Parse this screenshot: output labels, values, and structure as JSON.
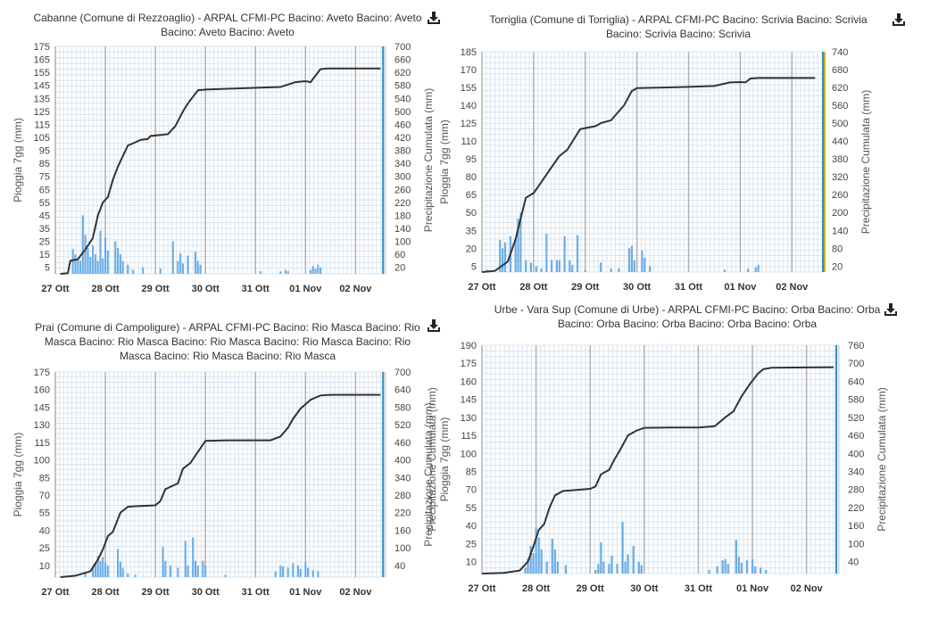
{
  "download_icon": "download-icon",
  "colors": {
    "bar": "#6aaee8",
    "line": "#333333",
    "grid_minor": "#d9e4ef",
    "grid_major": "#b0b0b0",
    "now_line": "#2b8fc7",
    "now_line_alt": "#c8b400"
  },
  "chart_data": [
    {
      "type": "bar+line",
      "title": "Cabanne (Comune di Rezzoaglio) - ARPAL CFMI-PC Bacino: Aveto Bacino: Aveto Bacino: Aveto Bacino: Aveto",
      "ylabel": "Pioggia 7gg (mm)",
      "y2label": "Precipitazione Cumulata (mm)",
      "categories": [
        "27 Ott",
        "28 Ott",
        "29 Ott",
        "30 Ott",
        "31 Ott",
        "01 Nov",
        "02 Nov"
      ],
      "yticks": [
        5,
        15,
        25,
        35,
        45,
        55,
        65,
        75,
        85,
        95,
        105,
        115,
        125,
        135,
        145,
        155,
        165,
        175
      ],
      "y2ticks": [
        20,
        60,
        100,
        140,
        180,
        220,
        260,
        300,
        340,
        380,
        420,
        460,
        500,
        540,
        580,
        620,
        660,
        700
      ],
      "ylim": [
        0,
        175
      ],
      "y2lim": [
        0,
        700
      ],
      "grid": true,
      "bars": [
        [
          27.35,
          19
        ],
        [
          27.4,
          15
        ],
        [
          27.45,
          12
        ],
        [
          27.5,
          10
        ],
        [
          27.55,
          45
        ],
        [
          27.6,
          30
        ],
        [
          27.65,
          20
        ],
        [
          27.7,
          13
        ],
        [
          27.75,
          22
        ],
        [
          27.8,
          15
        ],
        [
          27.85,
          10
        ],
        [
          27.9,
          33
        ],
        [
          27.95,
          12
        ],
        [
          28.0,
          28
        ],
        [
          28.05,
          18
        ],
        [
          28.2,
          25
        ],
        [
          28.25,
          20
        ],
        [
          28.3,
          15
        ],
        [
          28.35,
          10
        ],
        [
          28.45,
          7
        ],
        [
          28.55,
          3
        ],
        [
          28.75,
          5
        ],
        [
          29.1,
          4
        ],
        [
          29.35,
          25
        ],
        [
          29.45,
          10
        ],
        [
          29.5,
          16
        ],
        [
          29.55,
          8
        ],
        [
          29.65,
          14
        ],
        [
          29.8,
          17
        ],
        [
          29.85,
          10
        ],
        [
          29.9,
          7
        ],
        [
          31.1,
          2
        ],
        [
          31.5,
          2
        ],
        [
          31.6,
          3
        ],
        [
          31.65,
          2
        ],
        [
          32.1,
          3
        ],
        [
          32.15,
          6
        ],
        [
          32.2,
          4
        ],
        [
          32.25,
          7
        ],
        [
          32.3,
          5
        ]
      ],
      "cumulative": [
        [
          27.1,
          0
        ],
        [
          27.25,
          2
        ],
        [
          27.3,
          40
        ],
        [
          27.45,
          45
        ],
        [
          27.6,
          75
        ],
        [
          27.75,
          110
        ],
        [
          27.85,
          180
        ],
        [
          27.95,
          220
        ],
        [
          28.05,
          236
        ],
        [
          28.15,
          290
        ],
        [
          28.25,
          330
        ],
        [
          28.45,
          395
        ],
        [
          28.6,
          405
        ],
        [
          28.7,
          412
        ],
        [
          28.85,
          415
        ],
        [
          28.9,
          424
        ],
        [
          29.25,
          430
        ],
        [
          29.4,
          455
        ],
        [
          29.55,
          500
        ],
        [
          29.65,
          525
        ],
        [
          29.85,
          565
        ],
        [
          30.0,
          567
        ],
        [
          30.5,
          570
        ],
        [
          31.1,
          573
        ],
        [
          31.5,
          575
        ],
        [
          31.8,
          590
        ],
        [
          32.0,
          593
        ],
        [
          32.1,
          590
        ],
        [
          32.3,
          630
        ],
        [
          32.45,
          632
        ],
        [
          33.5,
          632
        ]
      ],
      "now_x": 33.55
    },
    {
      "type": "bar+line",
      "title": "Torriglia (Comune di Torriglia) - ARPAL CFMI-PC Bacino: Scrivia Bacino: Scrivia Bacino: Scrivia Bacino: Scrivia",
      "ylabel": "Pioggia 7gg (mm)",
      "y2label": "Precipitazione Cumulata (mm)",
      "categories": [
        "27 Ott",
        "28 Ott",
        "29 Ott",
        "30 Ott",
        "31 Ott",
        "01 Nov",
        "02 Nov"
      ],
      "yticks": [
        5,
        20,
        35,
        50,
        65,
        80,
        95,
        110,
        125,
        140,
        155,
        170,
        185
      ],
      "y2ticks": [
        20,
        80,
        140,
        200,
        260,
        320,
        380,
        440,
        500,
        560,
        620,
        680,
        740
      ],
      "ylim": [
        0,
        185
      ],
      "y2lim": [
        0,
        740
      ],
      "grid": true,
      "bars": [
        [
          27.1,
          2
        ],
        [
          27.35,
          27
        ],
        [
          27.4,
          20
        ],
        [
          27.45,
          25
        ],
        [
          27.55,
          30
        ],
        [
          27.65,
          28
        ],
        [
          27.7,
          45
        ],
        [
          27.75,
          50
        ],
        [
          27.85,
          10
        ],
        [
          27.95,
          8
        ],
        [
          28.05,
          5
        ],
        [
          28.15,
          3
        ],
        [
          28.25,
          32
        ],
        [
          28.35,
          10
        ],
        [
          28.45,
          10
        ],
        [
          28.5,
          10
        ],
        [
          28.6,
          30
        ],
        [
          28.7,
          10
        ],
        [
          28.75,
          6
        ],
        [
          28.85,
          31
        ],
        [
          29.0,
          2
        ],
        [
          29.3,
          8
        ],
        [
          29.5,
          3
        ],
        [
          29.65,
          3
        ],
        [
          29.85,
          20
        ],
        [
          29.9,
          22
        ],
        [
          29.95,
          10
        ],
        [
          30.1,
          18
        ],
        [
          30.15,
          12
        ],
        [
          30.25,
          5
        ],
        [
          31.7,
          2
        ],
        [
          32.15,
          3
        ],
        [
          32.3,
          4
        ],
        [
          32.35,
          6
        ]
      ],
      "cumulative": [
        [
          27.0,
          0
        ],
        [
          27.25,
          4
        ],
        [
          27.5,
          35
        ],
        [
          27.65,
          110
        ],
        [
          27.75,
          180
        ],
        [
          27.85,
          250
        ],
        [
          28.0,
          265
        ],
        [
          28.1,
          290
        ],
        [
          28.3,
          340
        ],
        [
          28.5,
          390
        ],
        [
          28.65,
          410
        ],
        [
          28.9,
          480
        ],
        [
          29.2,
          490
        ],
        [
          29.3,
          500
        ],
        [
          29.5,
          510
        ],
        [
          29.75,
          560
        ],
        [
          29.9,
          608
        ],
        [
          30.0,
          618
        ],
        [
          30.5,
          620
        ],
        [
          31.0,
          622
        ],
        [
          31.5,
          625
        ],
        [
          31.8,
          637
        ],
        [
          32.0,
          638
        ],
        [
          32.1,
          637
        ],
        [
          32.2,
          650
        ],
        [
          32.35,
          652
        ],
        [
          33.45,
          652
        ]
      ],
      "now_x": 33.6
    },
    {
      "type": "bar+line",
      "title": "Prai (Comune di Campoligure) - ARPAL CFMI-PC Bacino: Rio Masca Bacino: Rio Masca Bacino: Rio Masca Bacino: Rio Masca Bacino: Rio Masca Bacino: Rio Masca Bacino: Rio Masca Bacino: Rio Masca",
      "ylabel": "Pioggia 7gg (mm)",
      "y2label": "Precipitazione Cumulata (mm)",
      "categories": [
        "27 Ott",
        "28 Ott",
        "29 Ott",
        "30 Ott",
        "31 Ott",
        "01 Nov",
        "02 Nov"
      ],
      "yticks": [
        10,
        25,
        40,
        55,
        70,
        85,
        100,
        115,
        130,
        145,
        160,
        175
      ],
      "y2ticks": [
        40,
        100,
        160,
        220,
        280,
        340,
        400,
        460,
        520,
        580,
        640,
        700
      ],
      "ylim": [
        0,
        175
      ],
      "y2lim": [
        0,
        700
      ],
      "grid": true,
      "bars": [
        [
          27.6,
          3
        ],
        [
          27.75,
          8
        ],
        [
          27.8,
          12
        ],
        [
          27.85,
          18
        ],
        [
          27.9,
          14
        ],
        [
          27.95,
          17
        ],
        [
          28.0,
          12
        ],
        [
          28.05,
          10
        ],
        [
          28.25,
          24
        ],
        [
          28.3,
          13
        ],
        [
          28.35,
          8
        ],
        [
          28.45,
          3
        ],
        [
          28.6,
          2
        ],
        [
          29.15,
          26
        ],
        [
          29.2,
          14
        ],
        [
          29.3,
          10
        ],
        [
          29.45,
          8
        ],
        [
          29.6,
          31
        ],
        [
          29.65,
          10
        ],
        [
          29.75,
          34
        ],
        [
          29.8,
          14
        ],
        [
          29.85,
          10
        ],
        [
          29.95,
          14
        ],
        [
          30.0,
          10
        ],
        [
          30.4,
          2
        ],
        [
          31.4,
          5
        ],
        [
          31.5,
          10
        ],
        [
          31.55,
          9
        ],
        [
          31.65,
          8
        ],
        [
          31.75,
          12
        ],
        [
          31.85,
          10
        ],
        [
          31.9,
          7
        ],
        [
          32.0,
          13
        ],
        [
          32.05,
          8
        ],
        [
          32.15,
          6
        ],
        [
          32.25,
          5
        ]
      ],
      "cumulative": [
        [
          27.1,
          0
        ],
        [
          27.4,
          5
        ],
        [
          27.7,
          20
        ],
        [
          27.85,
          60
        ],
        [
          27.95,
          95
        ],
        [
          28.05,
          140
        ],
        [
          28.15,
          155
        ],
        [
          28.3,
          220
        ],
        [
          28.45,
          240
        ],
        [
          28.6,
          242
        ],
        [
          29.0,
          245
        ],
        [
          29.1,
          260
        ],
        [
          29.2,
          300
        ],
        [
          29.45,
          320
        ],
        [
          29.55,
          370
        ],
        [
          29.7,
          390
        ],
        [
          29.9,
          440
        ],
        [
          30.0,
          465
        ],
        [
          30.5,
          467
        ],
        [
          31.3,
          467
        ],
        [
          31.5,
          480
        ],
        [
          31.65,
          510
        ],
        [
          31.75,
          540
        ],
        [
          31.9,
          575
        ],
        [
          32.1,
          605
        ],
        [
          32.3,
          620
        ],
        [
          32.5,
          622
        ],
        [
          33.5,
          622
        ]
      ],
      "now_x": 33.55
    },
    {
      "type": "bar+line",
      "title": "Urbe - Vara Sup (Comune di Urbe) - ARPAL CFMI-PC Bacino: Orba Bacino: Orba Bacino: Orba Bacino: Orba Bacino: Orba Bacino: Orba",
      "ylabel": "Pioggia 7gg (mm)",
      "y2label": "Precipitazione Cumulata (mm)",
      "ylabel_overlap": "Precipitazione Cumulata (mm)",
      "categories": [
        "27 Ott",
        "28 Ott",
        "29 Ott",
        "30 Ott",
        "31 Ott",
        "01 Nov",
        "02 Nov"
      ],
      "yticks": [
        10,
        25,
        40,
        55,
        70,
        85,
        100,
        115,
        130,
        145,
        160,
        175,
        190
      ],
      "y2ticks": [
        40,
        100,
        160,
        220,
        280,
        340,
        400,
        460,
        520,
        580,
        640,
        700,
        760
      ],
      "ylim": [
        0,
        190
      ],
      "y2lim": [
        0,
        760
      ],
      "grid": true,
      "bars": [
        [
          27.8,
          5
        ],
        [
          27.85,
          12
        ],
        [
          27.9,
          23
        ],
        [
          27.95,
          17
        ],
        [
          28.0,
          38
        ],
        [
          28.05,
          30
        ],
        [
          28.1,
          20
        ],
        [
          28.2,
          10
        ],
        [
          28.3,
          29
        ],
        [
          28.35,
          20
        ],
        [
          28.4,
          10
        ],
        [
          28.55,
          7
        ],
        [
          29.1,
          3
        ],
        [
          29.15,
          8
        ],
        [
          29.2,
          26
        ],
        [
          29.25,
          10
        ],
        [
          29.35,
          8
        ],
        [
          29.4,
          15
        ],
        [
          29.5,
          8
        ],
        [
          29.6,
          43
        ],
        [
          29.65,
          10
        ],
        [
          29.7,
          16
        ],
        [
          29.8,
          23
        ],
        [
          29.9,
          10
        ],
        [
          29.95,
          7
        ],
        [
          31.2,
          3
        ],
        [
          31.35,
          6
        ],
        [
          31.45,
          11
        ],
        [
          31.5,
          12
        ],
        [
          31.55,
          8
        ],
        [
          31.7,
          28
        ],
        [
          31.75,
          14
        ],
        [
          31.8,
          9
        ],
        [
          31.9,
          11
        ],
        [
          32.0,
          12
        ],
        [
          32.05,
          6
        ],
        [
          32.15,
          5
        ],
        [
          32.25,
          3
        ]
      ],
      "cumulative": [
        [
          27.0,
          0
        ],
        [
          27.4,
          2
        ],
        [
          27.7,
          10
        ],
        [
          27.85,
          40
        ],
        [
          27.95,
          90
        ],
        [
          28.05,
          145
        ],
        [
          28.15,
          165
        ],
        [
          28.25,
          220
        ],
        [
          28.35,
          260
        ],
        [
          28.5,
          275
        ],
        [
          29.0,
          282
        ],
        [
          29.1,
          290
        ],
        [
          29.2,
          330
        ],
        [
          29.35,
          345
        ],
        [
          29.45,
          380
        ],
        [
          29.55,
          410
        ],
        [
          29.7,
          460
        ],
        [
          29.85,
          475
        ],
        [
          30.0,
          485
        ],
        [
          30.5,
          486
        ],
        [
          31.0,
          486
        ],
        [
          31.3,
          490
        ],
        [
          31.5,
          520
        ],
        [
          31.65,
          540
        ],
        [
          31.8,
          590
        ],
        [
          31.95,
          630
        ],
        [
          32.1,
          665
        ],
        [
          32.2,
          680
        ],
        [
          32.35,
          685
        ],
        [
          33.5,
          687
        ]
      ],
      "now_x": 33.55
    }
  ]
}
